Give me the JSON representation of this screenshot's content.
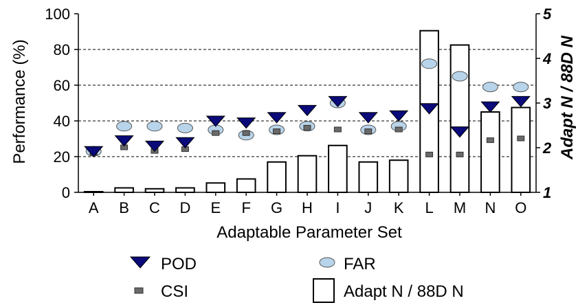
{
  "chart_data": {
    "type": "bar",
    "xlabel": "Adaptable Parameter Set",
    "ylabel": "Performance (%)",
    "y2label": "Adapt N / 88D N",
    "categories": [
      "A",
      "B",
      "C",
      "D",
      "E",
      "F",
      "G",
      "H",
      "I",
      "J",
      "K",
      "L",
      "M",
      "N",
      "O"
    ],
    "ylim": [
      0,
      100
    ],
    "y2lim": [
      1,
      5
    ],
    "yticks": [
      "0",
      "20",
      "40",
      "60",
      "80",
      "100"
    ],
    "y2ticks": [
      "1",
      "2",
      "3",
      "4",
      "5"
    ],
    "grid": "dashed horizontal at 20, 40, 60, 80",
    "series": [
      {
        "name": "POD",
        "axis": "left",
        "marker": "down-triangle",
        "values": [
          23,
          29,
          26,
          28,
          40,
          39,
          42,
          46,
          51,
          42,
          43,
          47,
          34,
          48,
          51
        ]
      },
      {
        "name": "FAR",
        "axis": "left",
        "marker": "ellipse",
        "values": [
          23,
          37,
          37,
          36,
          35,
          32,
          35,
          37,
          50,
          35,
          37,
          72,
          65,
          59,
          59
        ]
      },
      {
        "name": "CSI",
        "axis": "left",
        "marker": "small-rect",
        "values": [
          22,
          25,
          23,
          24,
          33,
          33,
          34,
          36,
          35,
          34,
          35,
          21,
          21,
          29,
          30
        ]
      },
      {
        "name": "Adapt N / 88D N",
        "axis": "right",
        "marker": "bar",
        "values": [
          1.0,
          1.1,
          1.08,
          1.1,
          1.21,
          1.3,
          1.68,
          1.82,
          2.05,
          1.68,
          1.72,
          4.62,
          4.3,
          2.8,
          2.9
        ]
      }
    ],
    "legend": {
      "position": "bottom",
      "entries": [
        "POD",
        "FAR",
        "CSI",
        "Adapt N / 88D N"
      ]
    }
  }
}
